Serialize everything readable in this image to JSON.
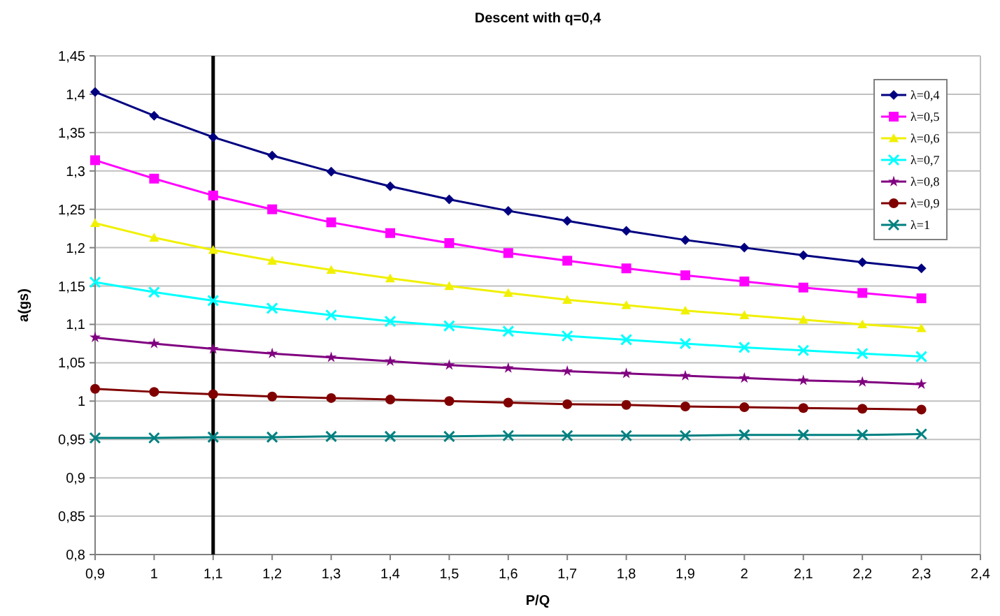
{
  "chart_data": {
    "type": "line",
    "title": "Descent with q=0,4",
    "xlabel": "P/Q",
    "ylabel": "a(gs)",
    "x": [
      0.9,
      1.0,
      1.1,
      1.2,
      1.3,
      1.4,
      1.5,
      1.6,
      1.7,
      1.8,
      1.9,
      2.0,
      2.1,
      2.2,
      2.3
    ],
    "series": [
      {
        "name": "λ=0,4",
        "color": "#000080",
        "marker": "diamond",
        "values": [
          1.403,
          1.372,
          1.344,
          1.32,
          1.299,
          1.28,
          1.263,
          1.248,
          1.235,
          1.222,
          1.21,
          1.2,
          1.19,
          1.181,
          1.173
        ]
      },
      {
        "name": "λ=0,5",
        "color": "#ff00ff",
        "marker": "square",
        "values": [
          1.314,
          1.29,
          1.268,
          1.25,
          1.233,
          1.219,
          1.206,
          1.193,
          1.183,
          1.173,
          1.164,
          1.156,
          1.148,
          1.141,
          1.134
        ]
      },
      {
        "name": "λ=0,6",
        "color": "#f0f000",
        "marker": "triangle",
        "values": [
          1.232,
          1.213,
          1.197,
          1.183,
          1.171,
          1.16,
          1.15,
          1.141,
          1.132,
          1.125,
          1.118,
          1.112,
          1.106,
          1.1,
          1.095
        ]
      },
      {
        "name": "λ=0,7",
        "color": "#00ffff",
        "marker": "cross",
        "values": [
          1.155,
          1.142,
          1.131,
          1.121,
          1.112,
          1.104,
          1.098,
          1.091,
          1.085,
          1.08,
          1.075,
          1.07,
          1.066,
          1.062,
          1.058
        ]
      },
      {
        "name": "λ=0,8",
        "color": "#800080",
        "marker": "star",
        "values": [
          1.083,
          1.075,
          1.068,
          1.062,
          1.057,
          1.052,
          1.047,
          1.043,
          1.039,
          1.036,
          1.033,
          1.03,
          1.027,
          1.025,
          1.022
        ]
      },
      {
        "name": "λ=0,9",
        "color": "#800000",
        "marker": "circle",
        "values": [
          1.016,
          1.012,
          1.009,
          1.006,
          1.004,
          1.002,
          1.0,
          0.998,
          0.996,
          0.995,
          0.993,
          0.992,
          0.991,
          0.99,
          0.989
        ]
      },
      {
        "name": "λ=1",
        "color": "#008080",
        "marker": "cross",
        "values": [
          0.952,
          0.952,
          0.953,
          0.953,
          0.954,
          0.954,
          0.954,
          0.955,
          0.955,
          0.955,
          0.955,
          0.956,
          0.956,
          0.956,
          0.957
        ]
      }
    ],
    "xlim": [
      0.9,
      2.4
    ],
    "xticks": [
      {
        "value": 0.9,
        "label": "0,9"
      },
      1,
      {
        "value": 1.1,
        "label": "1,1"
      },
      {
        "value": 1.2,
        "label": "1,2"
      },
      {
        "value": 1.3,
        "label": "1,3"
      },
      {
        "value": 1.4,
        "label": "1,4"
      },
      {
        "value": 1.5,
        "label": "1,5"
      },
      {
        "value": 1.6,
        "label": "1,6"
      },
      {
        "value": 1.7,
        "label": "1,7"
      },
      {
        "value": 1.8,
        "label": "1,8"
      },
      {
        "value": 1.9,
        "label": "1,9"
      },
      2,
      {
        "value": 2.1,
        "label": "2,1"
      },
      {
        "value": 2.2,
        "label": "2,2"
      },
      {
        "value": 2.3,
        "label": "2,3"
      },
      {
        "value": 2.4,
        "label": "2,4"
      }
    ],
    "ylim": [
      0.8,
      1.45
    ],
    "yticks": [
      {
        "value": 0.8,
        "label": "0,8"
      },
      {
        "value": 0.85,
        "label": "0,85"
      },
      {
        "value": 0.9,
        "label": "0,9"
      },
      {
        "value": 0.95,
        "label": "0,95"
      },
      1,
      {
        "value": 1.05,
        "label": "1,05"
      },
      {
        "value": 1.1,
        "label": "1,1"
      },
      {
        "value": 1.15,
        "label": "1,15"
      },
      {
        "value": 1.2,
        "label": "1,2"
      },
      {
        "value": 1.25,
        "label": "1,25"
      },
      {
        "value": 1.3,
        "label": "1,3"
      },
      {
        "value": 1.35,
        "label": "1,35"
      },
      {
        "value": 1.4,
        "label": "1,4"
      },
      {
        "value": 1.45,
        "label": "1,45"
      }
    ],
    "ref_lines": [
      {
        "axis": "x",
        "value": 1.1,
        "color": "#000000"
      }
    ],
    "grid": "y",
    "legend": "top right",
    "line_style": "solid"
  }
}
